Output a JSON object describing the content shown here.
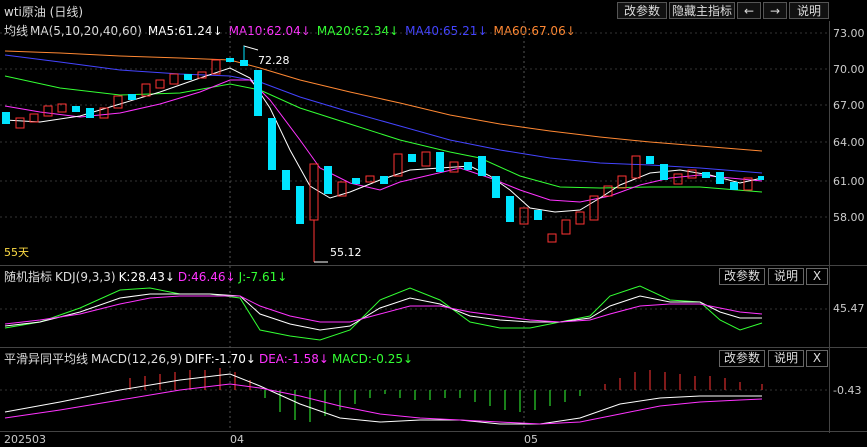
{
  "window": {
    "title": "wti原油 (日线)",
    "buttons": {
      "edit_params": "改参数",
      "hide_main": "隐藏主指标",
      "prev": "←",
      "next": "→",
      "help": "说明"
    }
  },
  "main_panel": {
    "ma_label": "均线",
    "ma_params": "MA(5,10,20,40,60)",
    "ma5": "MA5:61.24↓",
    "ma10": "MA10:62.04↓",
    "ma20": "MA20:62.34↓",
    "ma40": "MA40:65.21↓",
    "ma60": "MA60:67.06↓",
    "high_label": "72.28",
    "low_label": "55.12",
    "days_label": "55天",
    "y_ticks": [
      "73.00",
      "70.00",
      "67.00",
      "64.00",
      "61.00",
      "58.00"
    ],
    "colors": {
      "ma5": "#ffffff",
      "ma10": "#ff33ff",
      "ma20": "#33ff33",
      "ma40": "#3333ff",
      "ma60": "#ff8833",
      "up": "#ff3333",
      "down": "#00e5ff"
    }
  },
  "kdj_panel": {
    "title": "随机指标",
    "params": "KDJ(9,3,3)",
    "k": "K:28.43↓",
    "d": "D:46.46↓",
    "j": "J:-7.61↓",
    "y_tick": "45.47",
    "buttons": {
      "edit_params": "改参数",
      "help": "说明",
      "close": "X"
    }
  },
  "macd_panel": {
    "title": "平滑异同平均线",
    "params": "MACD(12,26,9)",
    "diff": "DIFF:-1.70↓",
    "dea": "DEA:-1.58↓",
    "macd": "MACD:-0.25↓",
    "y_tick": "-0.43",
    "buttons": {
      "edit_params": "改参数",
      "help": "说明",
      "close": "X"
    }
  },
  "x_axis": {
    "labels": [
      "202503",
      "04",
      "05"
    ]
  }
}
